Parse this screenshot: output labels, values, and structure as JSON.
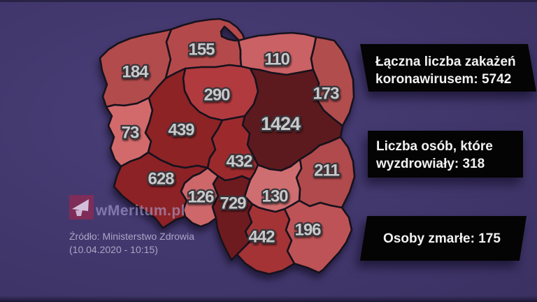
{
  "info_boxes": {
    "total": {
      "line1": "Łączna liczba zakażeń",
      "line2": "koronawirusem: 5742"
    },
    "recovered": {
      "line1": "Liczba osób, które",
      "line2": "wyzdrowiały: 318"
    },
    "deaths": {
      "line1": "Osoby zmarłe: 175"
    }
  },
  "watermark": {
    "brand": "wMeritum.pl"
  },
  "source": {
    "line1": "Źródło: Ministerstwo Zdrowia",
    "line2": "(10.04.2020 - 10:15)"
  },
  "map": {
    "border_color": "#17121d",
    "label_color": "#c9c9c9",
    "regions": [
      {
        "id": "r01",
        "value": "184",
        "color": "#b24b4c"
      },
      {
        "id": "r02",
        "value": "155",
        "color": "#b4494b"
      },
      {
        "id": "r03",
        "value": "110",
        "color": "#ca6164"
      },
      {
        "id": "r04",
        "value": "173",
        "color": "#b24d4e"
      },
      {
        "id": "r05",
        "value": "290",
        "color": "#b13a3e"
      },
      {
        "id": "r06",
        "value": "73",
        "color": "#d26a6c"
      },
      {
        "id": "r07",
        "value": "439",
        "color": "#8d2325"
      },
      {
        "id": "r08",
        "value": "1424",
        "color": "#5d1a1e"
      },
      {
        "id": "r09",
        "value": "432",
        "color": "#9c2a2d"
      },
      {
        "id": "r10",
        "value": "211",
        "color": "#b04a4c"
      },
      {
        "id": "r11",
        "value": "628",
        "color": "#8c2225"
      },
      {
        "id": "r12",
        "value": "126",
        "color": "#cd6769"
      },
      {
        "id": "r13",
        "value": "729",
        "color": "#6e1b1f"
      },
      {
        "id": "r14",
        "value": "130",
        "color": "#cf6e70"
      },
      {
        "id": "r15",
        "value": "442",
        "color": "#a43336"
      },
      {
        "id": "r16",
        "value": "196",
        "color": "#bd5356"
      }
    ]
  }
}
